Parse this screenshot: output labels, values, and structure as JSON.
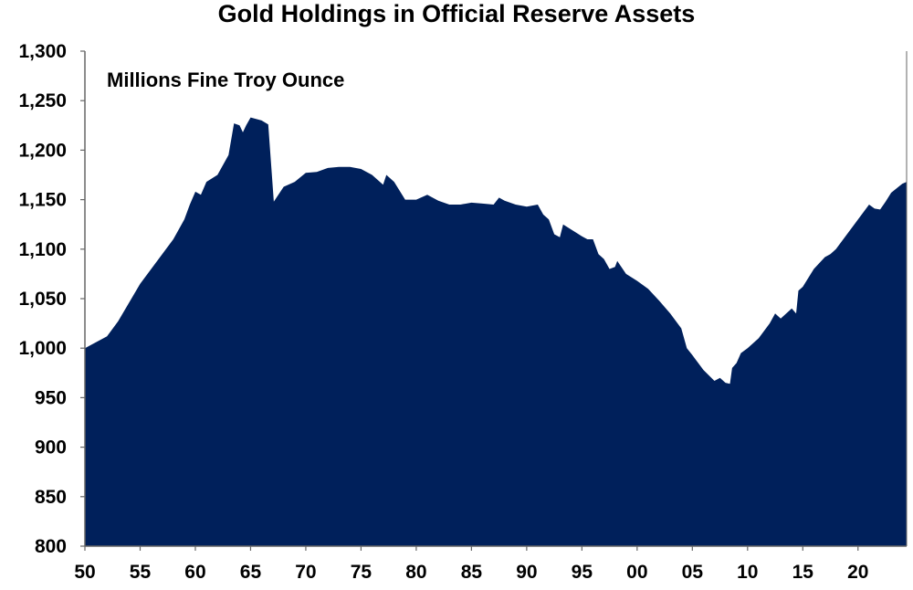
{
  "chart_data": {
    "type": "area",
    "title": "Gold Holdings in Official Reserve Assets",
    "annotation": "Millions Fine Troy Ounce",
    "xlabel": "",
    "ylabel": "",
    "xlim": [
      1950,
      2024.4
    ],
    "ylim": [
      800,
      1300
    ],
    "grid": false,
    "fill_color": "#00205B",
    "x_ticks": [
      1950,
      1955,
      1960,
      1965,
      1970,
      1975,
      1980,
      1985,
      1990,
      1995,
      2000,
      2005,
      2010,
      2015,
      2020
    ],
    "x_tick_labels": [
      "50",
      "55",
      "60",
      "65",
      "70",
      "75",
      "80",
      "85",
      "90",
      "95",
      "00",
      "05",
      "10",
      "15",
      "20"
    ],
    "y_ticks": [
      800,
      850,
      900,
      950,
      1000,
      1050,
      1100,
      1150,
      1200,
      1250,
      1300
    ],
    "y_tick_labels": [
      "800",
      "850",
      "900",
      "950",
      "1,000",
      "1,050",
      "1,100",
      "1,150",
      "1,200",
      "1,250",
      "1,300"
    ],
    "x": [
      1950,
      1952,
      1953,
      1955,
      1957,
      1958,
      1959,
      1959.5,
      1960,
      1960.5,
      1961,
      1962,
      1963,
      1963.5,
      1964,
      1964.3,
      1964.6,
      1965,
      1966,
      1966.6,
      1967.1,
      1968,
      1969,
      1970,
      1971,
      1972,
      1973,
      1974,
      1975,
      1976,
      1977,
      1977.3,
      1978,
      1979,
      1980,
      1981,
      1982,
      1983,
      1984,
      1985,
      1986,
      1987,
      1987.5,
      1988,
      1989,
      1990,
      1991,
      1991.5,
      1992,
      1992.5,
      1993,
      1993.3,
      1994,
      1995,
      1995.5,
      1996,
      1996.5,
      1997,
      1997.5,
      1998,
      1998.2,
      1999,
      2000,
      2001,
      2002,
      2003,
      2004,
      2004.5,
      2005,
      2006,
      2007,
      2007.5,
      2008,
      2008.4,
      2008.6,
      2009,
      2009.4,
      2010,
      2011,
      2012,
      2012.5,
      2013,
      2014,
      2014.4,
      2014.6,
      2015,
      2016,
      2017,
      2017.5,
      2018,
      2019,
      2020,
      2021,
      2021.5,
      2022,
      2022.5,
      2023,
      2024,
      2024.4
    ],
    "values": [
      1000,
      1012,
      1027,
      1065,
      1095,
      1110,
      1130,
      1145,
      1158,
      1155,
      1168,
      1175,
      1195,
      1227,
      1225,
      1218,
      1225,
      1233,
      1230,
      1226,
      1148,
      1163,
      1168,
      1177,
      1178,
      1182,
      1183,
      1183,
      1181,
      1175,
      1165,
      1175,
      1168,
      1150,
      1150,
      1155,
      1149,
      1145,
      1145,
      1147,
      1146,
      1145,
      1152,
      1149,
      1145,
      1143,
      1145,
      1135,
      1130,
      1115,
      1112,
      1125,
      1120,
      1113,
      1110,
      1110,
      1095,
      1090,
      1080,
      1082,
      1088,
      1075,
      1068,
      1060,
      1048,
      1035,
      1020,
      1000,
      993,
      978,
      967,
      970,
      965,
      964,
      980,
      985,
      995,
      1000,
      1010,
      1025,
      1035,
      1030,
      1040,
      1035,
      1058,
      1062,
      1080,
      1092,
      1095,
      1100,
      1115,
      1130,
      1145,
      1141,
      1140,
      1148,
      1157,
      1166,
      1168
    ]
  }
}
